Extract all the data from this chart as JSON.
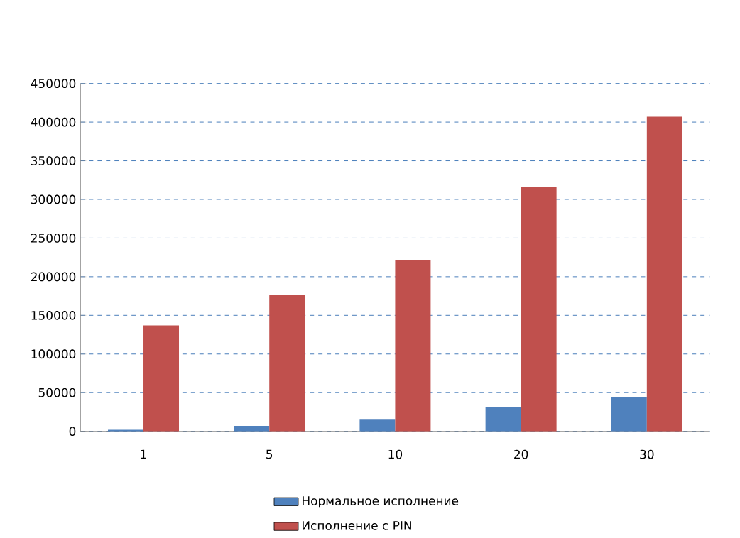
{
  "chart_data": {
    "type": "bar",
    "categories": [
      "1",
      "5",
      "10",
      "20",
      "30"
    ],
    "series": [
      {
        "name": "Нормальное исполнение",
        "color": "#4f81bd",
        "values": [
          2000,
          7000,
          15000,
          31000,
          44000
        ]
      },
      {
        "name": "Исполнение с PIN",
        "color": "#c0504d",
        "values": [
          137000,
          177000,
          221000,
          316000,
          407000
        ]
      }
    ],
    "ylim": [
      0,
      450000
    ],
    "yticks": [
      0,
      50000,
      100000,
      150000,
      200000,
      250000,
      300000,
      350000,
      400000,
      450000
    ],
    "grid": "y",
    "legend": "bottom"
  }
}
